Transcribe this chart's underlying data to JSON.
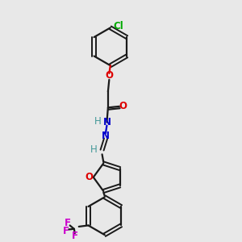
{
  "bg_color": "#e8e8e8",
  "bond_color": "#1a1a1a",
  "oxygen_color": "#dd0000",
  "nitrogen_color": "#0000cc",
  "chlorine_color": "#00aa00",
  "fluorine_color": "#cc00cc",
  "hydrogen_color": "#449999",
  "figsize": [
    3.0,
    3.0
  ],
  "dpi": 100,
  "xlim": [
    0,
    10
  ],
  "ylim": [
    0,
    10
  ]
}
